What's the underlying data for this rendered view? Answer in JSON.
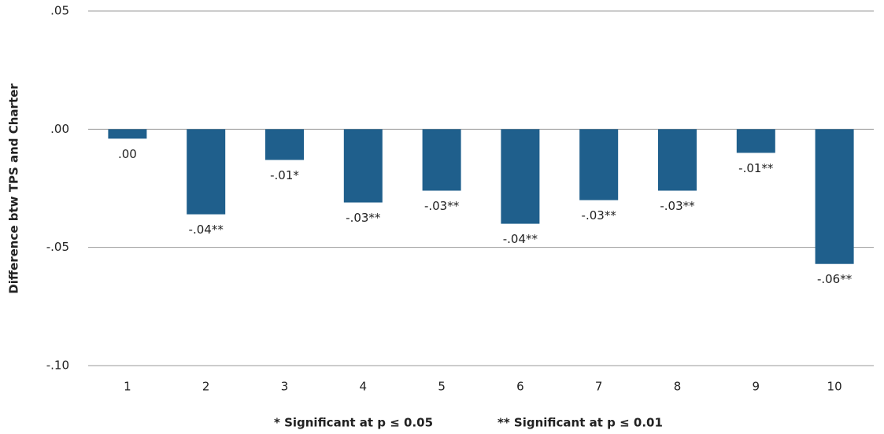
{
  "chart_data": {
    "type": "bar",
    "y_label": "Difference btw TPS and Charter",
    "notes": [
      "* Significant at p ≤ 0.05",
      "** Significant at p ≤ 0.01"
    ],
    "categories": [
      "1",
      "2",
      "3",
      "4",
      "5",
      "6",
      "7",
      "8",
      "9",
      "10"
    ],
    "values": [
      -0.004,
      -0.036,
      -0.013,
      -0.031,
      -0.026,
      -0.04,
      -0.03,
      -0.026,
      -0.01,
      -0.057
    ],
    "value_labels": [
      ".00",
      "-.04**",
      "-.01*",
      "-.03**",
      "-.03**",
      "-.04**",
      "-.03**",
      "-.03**",
      "-.01**",
      "-.06**"
    ],
    "color": "#1f5f8c",
    "ylim": [
      -0.1,
      0.05
    ],
    "yticks": [
      {
        "value": 0.05,
        "label": ".05"
      },
      {
        "value": 0,
        "label": ".00"
      },
      {
        "value": -0.05,
        "label": "-.05"
      },
      {
        "value": -0.1,
        "label": "-.10"
      }
    ],
    "grid": true
  }
}
